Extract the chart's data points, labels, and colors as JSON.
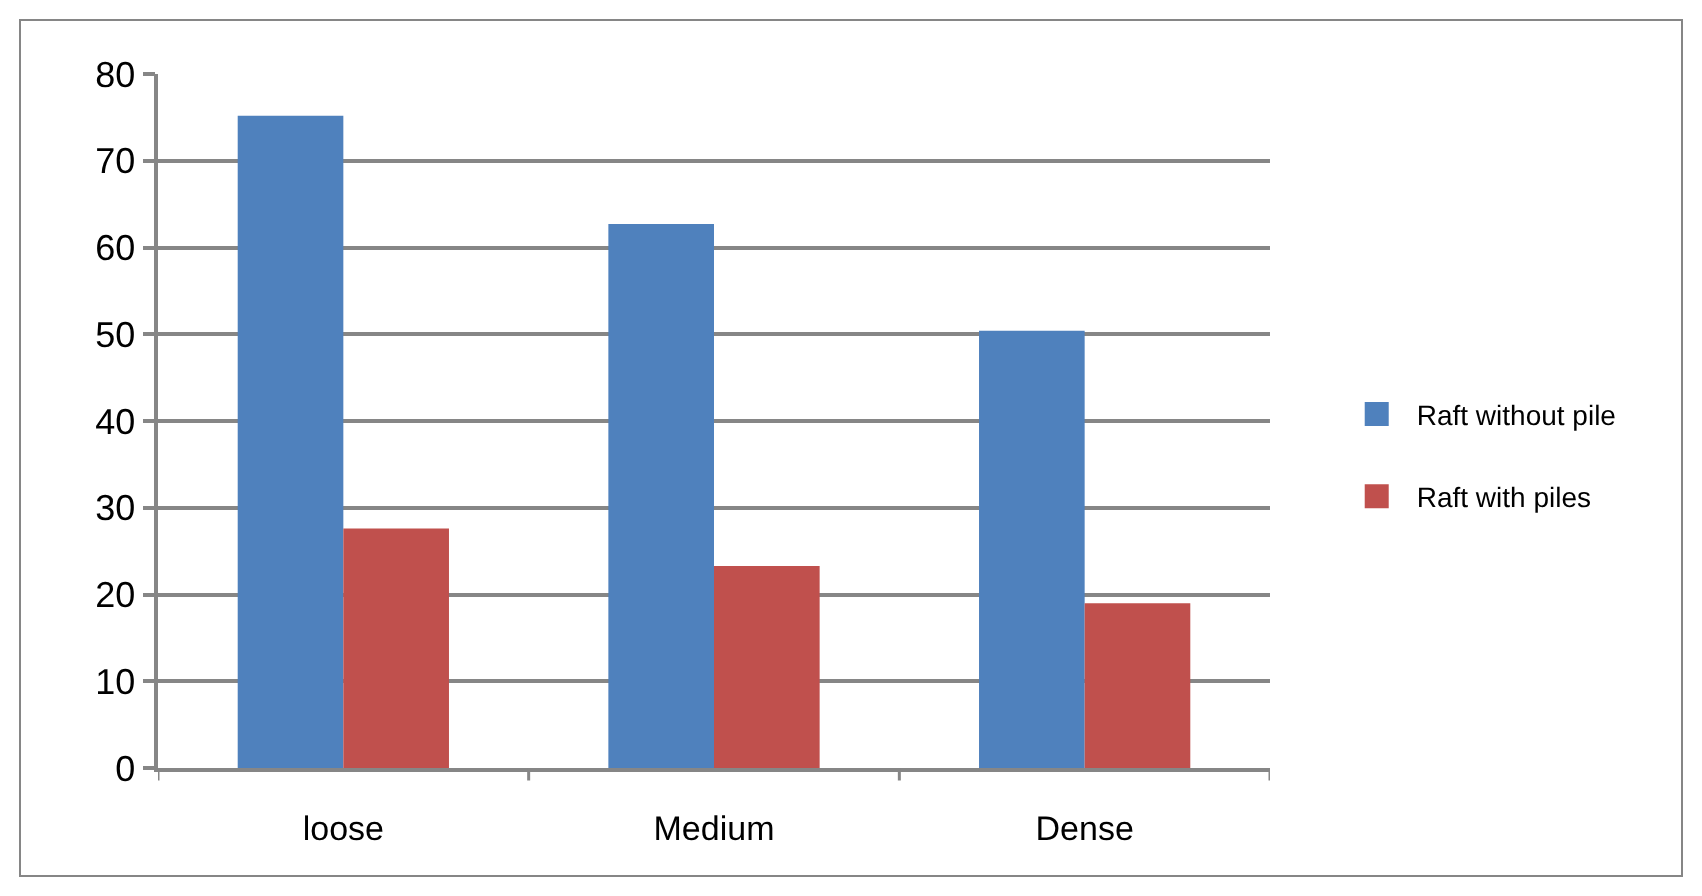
{
  "chart_data": {
    "type": "bar",
    "categories": [
      "loose",
      "Medium",
      "Dense"
    ],
    "series": [
      {
        "name": "Raft without pile",
        "color": "#4f81bd",
        "values": [
          75.2,
          62.7,
          50.4
        ]
      },
      {
        "name": "Raft with piles",
        "color": "#c0504d",
        "values": [
          27.6,
          23.3,
          19.0
        ]
      }
    ],
    "ylim": [
      0,
      80
    ],
    "yticks": [
      0,
      10,
      20,
      30,
      40,
      50,
      60,
      70,
      80
    ],
    "grid": "y",
    "legend": "right"
  }
}
